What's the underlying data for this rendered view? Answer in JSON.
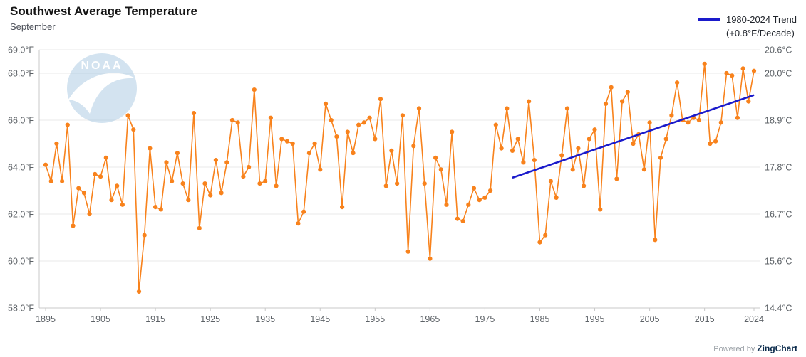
{
  "title": "Southwest Average Temperature",
  "subtitle": "September",
  "watermark": "NOAA",
  "legend": {
    "line1": "1980-2024 Trend",
    "line2": "(+0.8°F/Decade)"
  },
  "footer": {
    "powered_by": "Powered by",
    "brand": "ZingChart"
  },
  "colors": {
    "series": "#f8821c",
    "trend": "#1a1acb",
    "grid": "#e8e8e8",
    "axis": "#c9c9c9",
    "watermark_blue": "#9fc3de",
    "brand_navy": "#0b2b4c"
  },
  "chart_data": {
    "type": "line",
    "title": "Southwest Average Temperature",
    "subtitle": "September",
    "legend_position": "top-right",
    "grid": true,
    "years": [
      1895,
      1896,
      1897,
      1898,
      1899,
      1900,
      1901,
      1902,
      1903,
      1904,
      1905,
      1906,
      1907,
      1908,
      1909,
      1910,
      1911,
      1912,
      1913,
      1914,
      1915,
      1916,
      1917,
      1918,
      1919,
      1920,
      1921,
      1922,
      1923,
      1924,
      1925,
      1926,
      1927,
      1928,
      1929,
      1930,
      1931,
      1932,
      1933,
      1934,
      1935,
      1936,
      1937,
      1938,
      1939,
      1940,
      1941,
      1942,
      1943,
      1944,
      1945,
      1946,
      1947,
      1948,
      1949,
      1950,
      1951,
      1952,
      1953,
      1954,
      1955,
      1956,
      1957,
      1958,
      1959,
      1960,
      1961,
      1962,
      1963,
      1964,
      1965,
      1966,
      1967,
      1968,
      1969,
      1970,
      1971,
      1972,
      1973,
      1974,
      1975,
      1976,
      1977,
      1978,
      1979,
      1980,
      1981,
      1982,
      1983,
      1984,
      1985,
      1986,
      1987,
      1988,
      1989,
      1990,
      1991,
      1992,
      1993,
      1994,
      1995,
      1996,
      1997,
      1998,
      1999,
      2000,
      2001,
      2002,
      2003,
      2004,
      2005,
      2006,
      2007,
      2008,
      2009,
      2010,
      2011,
      2012,
      2013,
      2014,
      2015,
      2016,
      2017,
      2018,
      2019,
      2020,
      2021,
      2022,
      2023,
      2024
    ],
    "series": [
      {
        "name": "Average Temperature (°F)",
        "color": "#f8821c",
        "values": [
          64.1,
          63.4,
          65.0,
          63.4,
          65.8,
          61.5,
          63.1,
          62.9,
          62.0,
          63.7,
          63.6,
          64.4,
          62.6,
          63.2,
          62.4,
          66.2,
          65.6,
          58.7,
          61.1,
          64.8,
          62.3,
          62.2,
          64.2,
          63.4,
          64.6,
          63.3,
          62.6,
          66.3,
          61.4,
          63.3,
          62.8,
          64.3,
          62.9,
          64.2,
          66.0,
          65.9,
          63.6,
          64.0,
          67.3,
          63.3,
          63.4,
          66.1,
          63.2,
          65.2,
          65.1,
          65.0,
          61.6,
          62.1,
          64.6,
          65.0,
          63.9,
          66.7,
          66.0,
          65.3,
          62.3,
          65.5,
          64.6,
          65.8,
          65.9,
          66.1,
          65.2,
          66.9,
          63.2,
          64.7,
          63.3,
          66.2,
          60.4,
          64.9,
          66.5,
          63.3,
          60.1,
          64.4,
          63.9,
          62.4,
          65.5,
          61.8,
          61.7,
          62.4,
          63.1,
          62.6,
          62.7,
          63.0,
          65.8,
          64.8,
          66.5,
          64.7,
          65.2,
          64.2,
          66.8,
          64.3,
          60.8,
          61.1,
          63.4,
          62.7,
          64.5,
          66.5,
          63.9,
          64.8,
          63.2,
          65.2,
          65.6,
          62.2,
          66.7,
          67.4,
          63.5,
          66.8,
          67.2,
          65.0,
          65.4,
          63.9,
          65.9,
          60.9,
          64.4,
          65.2,
          66.2,
          67.6,
          66.0,
          65.9,
          66.1,
          66.0,
          68.4,
          65.0,
          65.1,
          65.9,
          68.0,
          67.9,
          66.1,
          68.2,
          66.8,
          68.1
        ]
      }
    ],
    "trend": {
      "name": "1980-2024 Trend",
      "rate": "+0.8°F/Decade",
      "color": "#1a1acb",
      "start_year": 1980,
      "start_value": 63.55,
      "end_year": 2024,
      "end_value": 67.07
    },
    "y_axis_left": {
      "unit": "°F",
      "min": 58.0,
      "max": 69.0,
      "tick_values": [
        58.0,
        60.0,
        62.0,
        64.0,
        66.0,
        68.0,
        69.0
      ],
      "tick_labels": [
        "58.0°F",
        "60.0°F",
        "62.0°F",
        "64.0°F",
        "66.0°F",
        "68.0°F",
        "69.0°F"
      ]
    },
    "y_axis_right": {
      "unit": "°C",
      "tick_labels": [
        "14.4°C",
        "15.6°C",
        "16.7°C",
        "17.8°C",
        "18.9°C",
        "20.0°C",
        "20.6°C"
      ]
    },
    "x_axis": {
      "tick_values": [
        1895,
        1905,
        1915,
        1925,
        1935,
        1945,
        1955,
        1965,
        1975,
        1985,
        1995,
        2005,
        2015,
        2024
      ],
      "tick_labels": [
        "1895",
        "1905",
        "1915",
        "1925",
        "1935",
        "1945",
        "1955",
        "1965",
        "1975",
        "1985",
        "1995",
        "2005",
        "2015",
        "2024"
      ]
    }
  }
}
